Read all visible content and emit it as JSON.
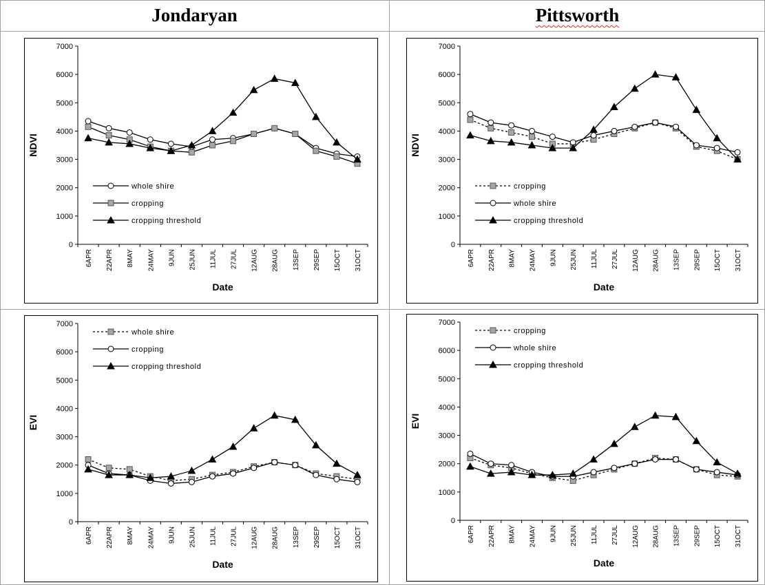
{
  "header": {
    "columns": [
      "Jondaryan",
      "Pittsworth"
    ]
  },
  "chart_data": [
    {
      "type": "line",
      "xlabel": "Date",
      "ylabel": "NDVI",
      "legend": "lower left",
      "categories": [
        "6APR",
        "22APR",
        "8MAY",
        "24MAY",
        "9JUN",
        "25JUN",
        "11JUL",
        "27JUL",
        "12AUG",
        "28AUG",
        "13SEP",
        "29SEP",
        "15OCT",
        "31OCT"
      ],
      "ylim": [
        0,
        7000
      ],
      "yticks": [
        0,
        1000,
        2000,
        3000,
        4000,
        5000,
        6000,
        7000
      ],
      "series": [
        {
          "name": "whole shire",
          "color": "#000000",
          "marker": "circle",
          "marker_color": "#ffffff",
          "dashed": false,
          "values": [
            4350,
            4100,
            3950,
            3700,
            3550,
            3450,
            3700,
            3750,
            3900,
            4100,
            3900,
            3400,
            3200,
            3100
          ]
        },
        {
          "name": "cropping",
          "color": "#000000",
          "marker": "square",
          "marker_color": "#a6a6a6",
          "dashed": false,
          "values": [
            4150,
            3850,
            3700,
            3450,
            3300,
            3250,
            3500,
            3650,
            3900,
            4100,
            3900,
            3300,
            3100,
            2850
          ]
        },
        {
          "name": "cropping threshold",
          "color": "#000000",
          "marker": "triangle",
          "marker_color": "#000000",
          "dashed": false,
          "values": [
            3750,
            3600,
            3550,
            3400,
            3300,
            3500,
            4000,
            4650,
            5450,
            5850,
            5700,
            4500,
            3600,
            3000
          ]
        }
      ]
    },
    {
      "type": "line",
      "xlabel": "Date",
      "ylabel": "NDVI",
      "legend": "lower left",
      "categories": [
        "6APR",
        "22APR",
        "8MAY",
        "24MAY",
        "9JUN",
        "25JUN",
        "11JUL",
        "27JUL",
        "12AUG",
        "28AUG",
        "13SEP",
        "29SEP",
        "15OCT",
        "31OCT"
      ],
      "ylim": [
        0,
        7000
      ],
      "yticks": [
        0,
        1000,
        2000,
        3000,
        4000,
        5000,
        6000,
        7000
      ],
      "series": [
        {
          "name": "cropping",
          "color": "#000000",
          "marker": "square",
          "marker_color": "#a6a6a6",
          "dashed": true,
          "values": [
            4400,
            4100,
            3950,
            3800,
            3550,
            3550,
            3700,
            3900,
            4100,
            4300,
            4100,
            3450,
            3300,
            3000
          ]
        },
        {
          "name": "whole shire",
          "color": "#000000",
          "marker": "circle",
          "marker_color": "#ffffff",
          "dashed": false,
          "values": [
            4600,
            4300,
            4200,
            4000,
            3800,
            3600,
            3850,
            4000,
            4150,
            4300,
            4150,
            3500,
            3400,
            3250
          ]
        },
        {
          "name": "cropping threshold",
          "color": "#000000",
          "marker": "triangle",
          "marker_color": "#000000",
          "dashed": false,
          "values": [
            3850,
            3650,
            3600,
            3500,
            3400,
            3400,
            4050,
            4850,
            5500,
            6000,
            5900,
            4750,
            3750,
            3000
          ]
        }
      ]
    },
    {
      "type": "line",
      "xlabel": "Date",
      "ylabel": "EVI",
      "legend": "upper left",
      "categories": [
        "6APR",
        "22APR",
        "8MAY",
        "24MAY",
        "9JUN",
        "25JUN",
        "11JUL",
        "27JUL",
        "12AUG",
        "28AUG",
        "13SEP",
        "29SEP",
        "15OCT",
        "31OCT"
      ],
      "ylim": [
        0,
        7000
      ],
      "yticks": [
        0,
        1000,
        2000,
        3000,
        4000,
        5000,
        6000,
        7000
      ],
      "series": [
        {
          "name": "whole shire",
          "color": "#000000",
          "marker": "square",
          "marker_color": "#a6a6a6",
          "dashed": true,
          "values": [
            2200,
            1900,
            1850,
            1600,
            1450,
            1500,
            1650,
            1750,
            1950,
            2100,
            2000,
            1700,
            1600,
            1500
          ]
        },
        {
          "name": "cropping",
          "color": "#000000",
          "marker": "circle",
          "marker_color": "#ffffff",
          "dashed": false,
          "values": [
            2000,
            1700,
            1650,
            1450,
            1350,
            1400,
            1600,
            1700,
            1900,
            2100,
            2000,
            1650,
            1500,
            1400
          ]
        },
        {
          "name": "cropping threshold",
          "color": "#000000",
          "marker": "triangle",
          "marker_color": "#000000",
          "dashed": false,
          "values": [
            1850,
            1650,
            1650,
            1550,
            1600,
            1800,
            2200,
            2650,
            3300,
            3750,
            3600,
            2700,
            2050,
            1650
          ]
        }
      ]
    },
    {
      "type": "line",
      "xlabel": "Date",
      "ylabel": "EVI",
      "legend": "upper left",
      "categories": [
        "6APR",
        "22APR",
        "8MAY",
        "24MAY",
        "9JUN",
        "25JUN",
        "11JUL",
        "27JUL",
        "12AUG",
        "28AUG",
        "13SEP",
        "29SEP",
        "15OCT",
        "31OCT"
      ],
      "ylim": [
        0,
        7000
      ],
      "yticks": [
        0,
        1000,
        2000,
        3000,
        4000,
        5000,
        6000,
        7000
      ],
      "series": [
        {
          "name": "cropping",
          "color": "#000000",
          "marker": "square",
          "marker_color": "#a6a6a6",
          "dashed": true,
          "values": [
            2200,
            1950,
            1850,
            1650,
            1500,
            1400,
            1600,
            1800,
            2000,
            2200,
            2150,
            1800,
            1600,
            1550
          ]
        },
        {
          "name": "whole shire",
          "color": "#000000",
          "marker": "circle",
          "marker_color": "#ffffff",
          "dashed": false,
          "values": [
            2350,
            2000,
            1950,
            1700,
            1550,
            1550,
            1700,
            1850,
            2000,
            2150,
            2150,
            1800,
            1700,
            1600
          ]
        },
        {
          "name": "cropping threshold",
          "color": "#000000",
          "marker": "triangle",
          "marker_color": "#000000",
          "dashed": false,
          "values": [
            1900,
            1650,
            1700,
            1600,
            1600,
            1650,
            2150,
            2700,
            3300,
            3700,
            3650,
            2800,
            2050,
            1650
          ]
        }
      ]
    }
  ]
}
